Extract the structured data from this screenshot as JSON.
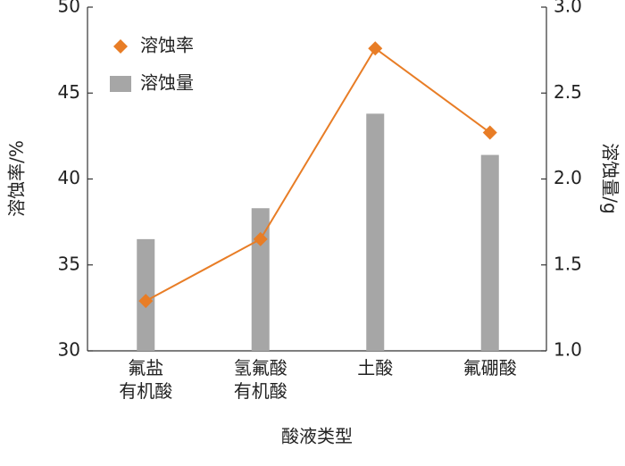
{
  "chart_data": {
    "type": "bar_line",
    "categories": [
      "氟盐\n有机酸",
      "氢氟酸\n有机酸",
      "土酸",
      "氟硼酸"
    ],
    "series": [
      {
        "name": "溶蚀率",
        "color": "#e87d26",
        "type": "line",
        "values": [
          32.9,
          36.5,
          47.6,
          42.7
        ]
      },
      {
        "name": "溶蚀量",
        "color": "#a6a6a6",
        "type": "bar",
        "axis": "y2",
        "values": [
          1.65,
          1.83,
          2.38,
          2.14
        ]
      }
    ],
    "ylabel": "溶蚀率/%",
    "y2label": "溶蚀量/g",
    "xlabel": "酸液类型",
    "ylim": [
      30,
      50
    ],
    "yticks": [
      30,
      35,
      40,
      45,
      50
    ],
    "y2lim": [
      1,
      3
    ],
    "y2ticks": [
      {
        "value": 1,
        "label": "1.0"
      },
      {
        "value": 1.5,
        "label": "1.5"
      },
      {
        "value": 2,
        "label": "2.0"
      },
      {
        "value": 2.5,
        "label": "2.5"
      },
      {
        "value": 3,
        "label": "3.0"
      }
    ],
    "legend": "upper left"
  }
}
